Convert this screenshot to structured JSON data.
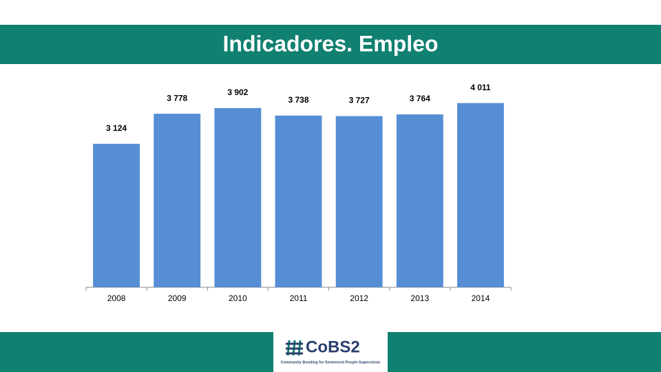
{
  "chart_data": {
    "type": "bar",
    "title": "Indicadores. Empleo",
    "categories": [
      "2008",
      "2009",
      "2010",
      "2011",
      "2012",
      "2013",
      "2014"
    ],
    "values": [
      3124,
      3778,
      3902,
      3738,
      3727,
      3764,
      4011
    ],
    "value_labels": [
      "3 124",
      "3 778",
      "3 902",
      "3 738",
      "3 727",
      "3 764",
      "4 011"
    ],
    "color": "#558ed5",
    "ylim": [
      0,
      4500
    ],
    "grid": false
  },
  "logo": {
    "name": "CoBS2",
    "tagline": "Community Bonding for Sentenced People Supervision"
  }
}
